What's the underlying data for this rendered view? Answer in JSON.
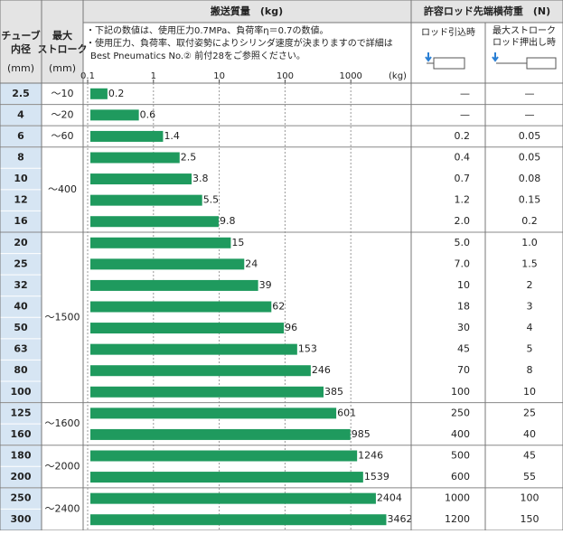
{
  "header": {
    "bore": [
      "チューブ",
      "内径"
    ],
    "bore_unit": "(mm)",
    "stroke": [
      "最大",
      "ストローク"
    ],
    "stroke_unit": "(mm)",
    "load": "許容ロッド先端横荷重　(N)",
    "retract": [
      "ロッド引込時"
    ],
    "extend": [
      "最大ストローク",
      "ロッド押出し時"
    ]
  },
  "notes": [
    "・下記の数値は、使用圧力0.7MPa、負荷率η＝0.7の数値。",
    "・使用圧力、負荷率、取付姿勢によりシリンダ速度が決まりますので詳細は",
    "Best Pneumatics No.② 前付28をご参照ください。"
  ],
  "strokes": [
    "～10",
    "～20",
    "～60",
    "～400",
    "～1500",
    "～1600",
    "～2000",
    "～2400"
  ],
  "loads": [
    [
      "—",
      "—"
    ],
    [
      "—",
      "—"
    ],
    [
      "0.2",
      "0.05"
    ],
    [
      "0.4",
      "0.05"
    ],
    [
      "0.7",
      "0.08"
    ],
    [
      "1.2",
      "0.15"
    ],
    [
      "2.0",
      "0.2"
    ],
    [
      "5.0",
      "1.0"
    ],
    [
      "7.0",
      "1.5"
    ],
    [
      "10",
      "2"
    ],
    [
      "18",
      "3"
    ],
    [
      "30",
      "4"
    ],
    [
      "45",
      "5"
    ],
    [
      "70",
      "8"
    ],
    [
      "100",
      "10"
    ],
    [
      "250",
      "25"
    ],
    [
      "400",
      "40"
    ],
    [
      "500",
      "45"
    ],
    [
      "600",
      "55"
    ],
    [
      "1000",
      "100"
    ],
    [
      "1200",
      "150"
    ]
  ],
  "chart_data": {
    "type": "bar",
    "orientation": "horizontal",
    "title": "搬送質量　(kg)",
    "x_unit": "(kg)",
    "categories": [
      "2.5",
      "4",
      "6",
      "8",
      "10",
      "12",
      "16",
      "20",
      "25",
      "32",
      "40",
      "50",
      "63",
      "80",
      "100",
      "125",
      "160",
      "180",
      "200",
      "250",
      "300"
    ],
    "values": [
      0.2,
      0.6,
      1.4,
      2.5,
      3.8,
      5.5,
      9.8,
      15,
      24,
      39,
      62,
      96,
      153,
      246,
      385,
      601,
      985,
      1246,
      1539,
      2404,
      3462
    ],
    "color": "#1f9a5e",
    "xlim": [
      0.1,
      10000
    ],
    "xticks": [
      0.1,
      1,
      10,
      100,
      1000
    ],
    "log_scale": true,
    "grid": true
  }
}
